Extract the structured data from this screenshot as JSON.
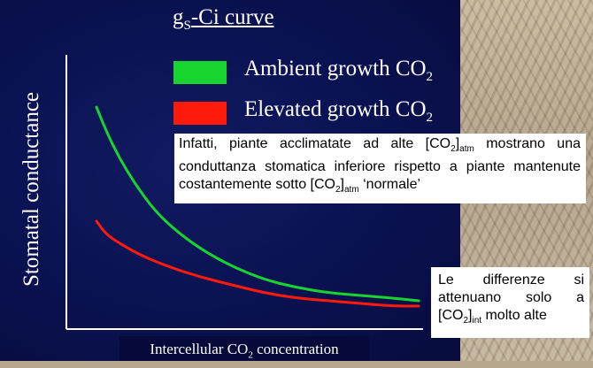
{
  "title": {
    "main": "g",
    "sub": "S",
    "rest": "-Ci curve"
  },
  "legend": [
    {
      "label": "Ambient growth CO",
      "sub": "2",
      "color": "#17d52e"
    },
    {
      "label": "Elevated growth CO",
      "sub": "2",
      "color": "#ff1a0a"
    }
  ],
  "axes": {
    "ylabel": "Stomatal conductance",
    "xlabel_main": "Intercellular CO",
    "xlabel_sub": "2",
    "xlabel_rest": " concentration"
  },
  "notes": {
    "n1_p1": "Infatti, piante acclimatate ad alte [CO",
    "n1_s1": "2",
    "n1_b1": "]",
    "n1_s2": "atm",
    "n1_p2": " mostrano una conduttanza stomatica inferiore rispetto a piante mantenute costantemente sotto [CO",
    "n1_s3": "2",
    "n1_b2": "]",
    "n1_s4": "atm",
    "n1_p3": " ‘normale’",
    "n2_p1": "Le differenze si attenuano solo a [CO",
    "n2_s1": "2",
    "n2_b1": "]",
    "n2_s2": "int",
    "n2_p2": " molto alte"
  },
  "chart_data": {
    "type": "line",
    "title": "gS-Ci curve",
    "xlabel": "Intercellular CO2 concentration",
    "ylabel": "Stomatal conductance",
    "xlim": [
      0,
      100
    ],
    "ylim": [
      0,
      100
    ],
    "grid": false,
    "legend_position": "top",
    "series": [
      {
        "name": "Ambient growth CO2",
        "color": "#17d52e",
        "x": [
          0,
          3,
          7,
          12,
          18,
          25,
          33,
          42,
          52,
          62,
          72,
          82,
          92,
          100
        ],
        "y": [
          81,
          72,
          62,
          52,
          42,
          34,
          27,
          21,
          16,
          13,
          11,
          10,
          9,
          8
        ]
      },
      {
        "name": "Elevated growth CO2",
        "color": "#ff1a0a",
        "x": [
          0,
          3,
          8,
          14,
          22,
          32,
          42,
          52,
          62,
          72,
          82,
          92,
          100
        ],
        "y": [
          38,
          33,
          29,
          25,
          21,
          17,
          14,
          11,
          9,
          8,
          7,
          6,
          6
        ]
      }
    ]
  }
}
